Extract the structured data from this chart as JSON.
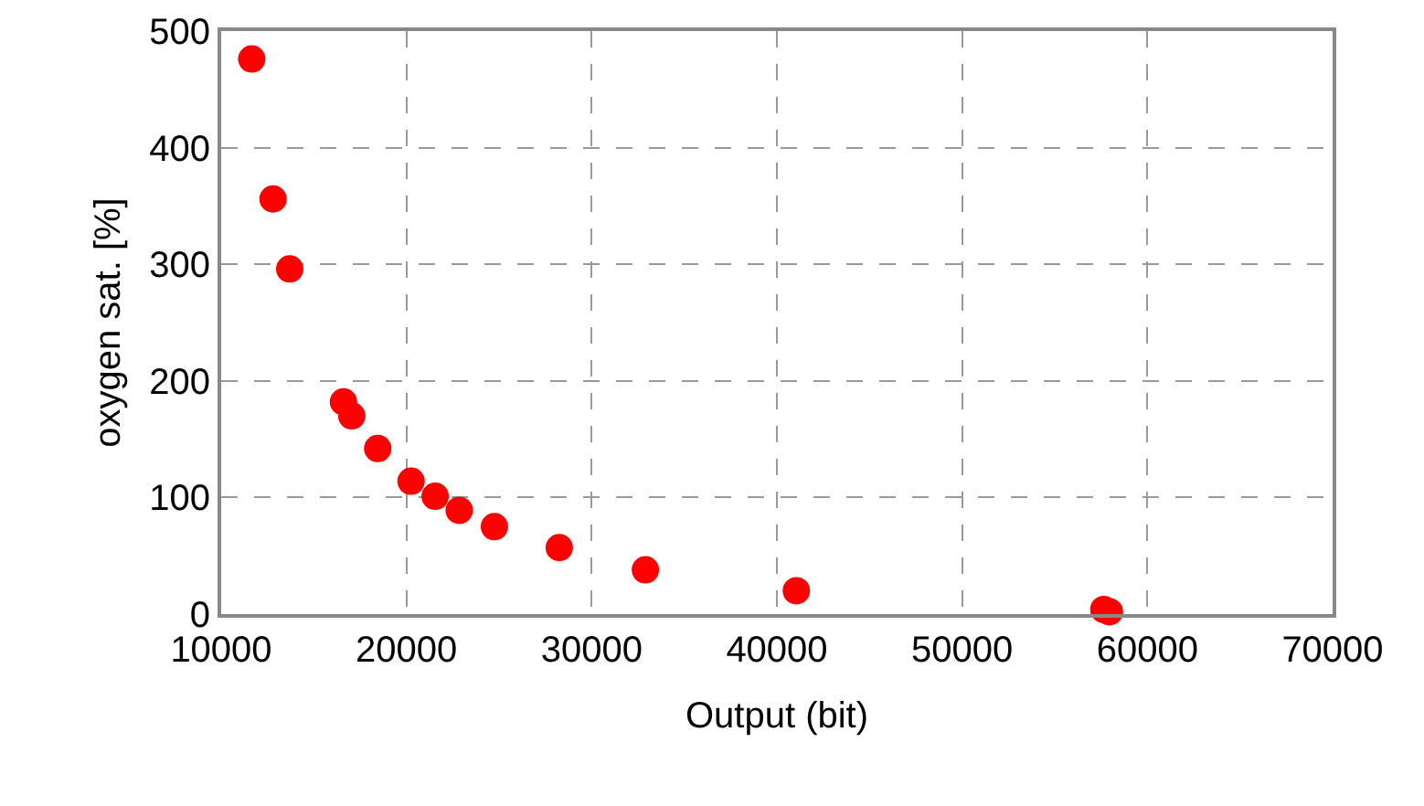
{
  "chart_data": {
    "type": "scatter",
    "xlabel": "Output (bit)",
    "ylabel": "oxygen sat. [%]",
    "x": [
      11650,
      12800,
      13700,
      16600,
      17050,
      18450,
      20250,
      21550,
      22850,
      24750,
      28250,
      32900,
      41050,
      57650,
      57950
    ],
    "values": [
      476,
      356,
      296,
      182,
      170,
      142,
      114,
      101,
      89,
      75,
      57,
      38,
      20,
      4,
      2
    ],
    "color": "#ff0000",
    "marker": "circle",
    "xlim": [
      10000,
      70000
    ],
    "xticks": [
      10000,
      20000,
      30000,
      40000,
      50000,
      60000,
      70000
    ],
    "ylim": [
      0,
      500
    ],
    "yticks": [
      0,
      100,
      200,
      300,
      400,
      500
    ],
    "grid": true
  }
}
